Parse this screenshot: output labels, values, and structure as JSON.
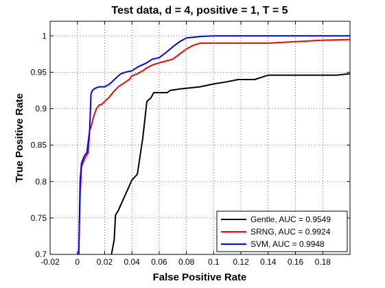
{
  "chart_data": {
    "type": "line",
    "title": "Test data, d = 4, positive = 1, T = 5",
    "xlabel": "False Positive Rate",
    "ylabel": "True Positive Rate",
    "xlim": [
      -0.02,
      0.2
    ],
    "ylim": [
      0.7,
      1.02
    ],
    "xticks": [
      -0.02,
      0,
      0.02,
      0.04,
      0.06,
      0.08,
      0.1,
      0.12,
      0.14,
      0.16,
      0.18
    ],
    "xtick_labels": [
      "-0.02",
      "0",
      "0.02",
      "0.04",
      "0.06",
      "0.08",
      "0.1",
      "0.12",
      "0.14",
      "0.16",
      "0.18"
    ],
    "yticks": [
      0.7,
      0.75,
      0.8,
      0.85,
      0.9,
      0.95,
      1
    ],
    "ytick_labels": [
      "0.7",
      "0.75",
      "0.8",
      "0.85",
      "0.9",
      "0.95",
      "1"
    ],
    "grid": true,
    "legend_position": "bottom-right",
    "series": [
      {
        "name": "Gentle, AUC = 0.9549",
        "color": "#000000",
        "x": [
          0.025,
          0.027,
          0.028,
          0.03,
          0.04,
          0.044,
          0.048,
          0.051,
          0.054,
          0.056,
          0.06,
          0.066,
          0.068,
          0.075,
          0.08,
          0.09,
          0.1,
          0.11,
          0.118,
          0.125,
          0.13,
          0.135,
          0.14,
          0.15,
          0.16,
          0.19,
          0.2
        ],
        "y": [
          0.7,
          0.72,
          0.754,
          0.76,
          0.802,
          0.81,
          0.86,
          0.91,
          0.915,
          0.922,
          0.922,
          0.922,
          0.925,
          0.927,
          0.928,
          0.93,
          0.934,
          0.937,
          0.94,
          0.94,
          0.94,
          0.943,
          0.946,
          0.946,
          0.946,
          0.946,
          0.948
        ]
      },
      {
        "name": "SRNG, AUC = 0.9924",
        "color": "#ff0000",
        "x": [
          0.001,
          0.002,
          0.003,
          0.005,
          0.008,
          0.009,
          0.01,
          0.012,
          0.014,
          0.016,
          0.018,
          0.02,
          0.023,
          0.026,
          0.03,
          0.034,
          0.038,
          0.04,
          0.044,
          0.048,
          0.05,
          0.055,
          0.06,
          0.07,
          0.075,
          0.08,
          0.085,
          0.09,
          0.1,
          0.12,
          0.14,
          0.16,
          0.18,
          0.2
        ],
        "y": [
          0.7,
          0.78,
          0.82,
          0.83,
          0.84,
          0.87,
          0.875,
          0.89,
          0.9,
          0.905,
          0.906,
          0.91,
          0.915,
          0.922,
          0.93,
          0.935,
          0.94,
          0.945,
          0.948,
          0.952,
          0.955,
          0.96,
          0.963,
          0.968,
          0.975,
          0.982,
          0.987,
          0.99,
          0.99,
          0.99,
          0.99,
          0.992,
          0.994,
          0.995
        ]
      },
      {
        "name": "SVM, AUC = 0.9948",
        "color": "#0000ff",
        "x": [
          0.001,
          0.002,
          0.003,
          0.005,
          0.007,
          0.009,
          0.01,
          0.011,
          0.013,
          0.016,
          0.02,
          0.023,
          0.025,
          0.03,
          0.032,
          0.035,
          0.04,
          0.045,
          0.05,
          0.055,
          0.06,
          0.065,
          0.07,
          0.075,
          0.08,
          0.09,
          0.1,
          0.12,
          0.15,
          0.2
        ],
        "y": [
          0.7,
          0.8,
          0.825,
          0.835,
          0.84,
          0.87,
          0.92,
          0.925,
          0.928,
          0.93,
          0.93,
          0.933,
          0.936,
          0.945,
          0.948,
          0.95,
          0.952,
          0.958,
          0.962,
          0.968,
          0.97,
          0.977,
          0.985,
          0.992,
          0.997,
          0.999,
          1.0,
          1.0,
          1.0,
          1.0
        ]
      }
    ]
  }
}
